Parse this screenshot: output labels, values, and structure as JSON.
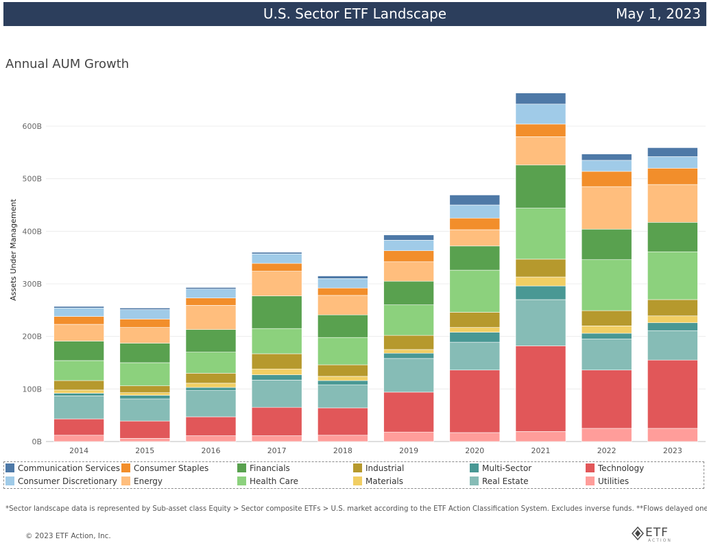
{
  "header": {
    "title": "U.S. Sector ETF Landscape",
    "date": "May 1, 2023"
  },
  "subtitle": "Annual AUM Growth",
  "footnote": "*Sector landscape data is represented by Sub-asset class Equity > Sector composite ETFs > U.S. market according to the ETF Action Classification System. Excludes inverse funds. **Flows delayed one day.",
  "copyright": "© 2023 ETF Action, Inc.",
  "logo": {
    "text": "ETF",
    "sub": "ACTION"
  },
  "chart_data": {
    "type": "bar",
    "stacked": true,
    "title": "Annual AUM Growth",
    "ylabel": "Assets Under Management",
    "xlabel": "",
    "ylim": [
      0,
      690
    ],
    "yticks": [
      0,
      100,
      200,
      300,
      400,
      500,
      600
    ],
    "ytick_labels": [
      "0B",
      "100B",
      "200B",
      "300B",
      "400B",
      "500B",
      "600B"
    ],
    "grid": true,
    "legend_position": "bottom",
    "categories": [
      "2014",
      "2015",
      "2016",
      "2017",
      "2018",
      "2019",
      "2020",
      "2021",
      "2022",
      "2023"
    ],
    "series": [
      {
        "name": "Utilities",
        "color": "#ff9d9a",
        "values": [
          12,
          6,
          11,
          11,
          12,
          18,
          17,
          19,
          25,
          25
        ]
      },
      {
        "name": "Technology",
        "color": "#e15759",
        "values": [
          31,
          33,
          36,
          54,
          52,
          76,
          119,
          163,
          111,
          130
        ]
      },
      {
        "name": "Real Estate",
        "color": "#86bcb6",
        "values": [
          44,
          42,
          50,
          52,
          44,
          64,
          53,
          88,
          59,
          56
        ]
      },
      {
        "name": "Multi-Sector",
        "color": "#499894",
        "values": [
          5,
          7,
          6,
          10,
          8,
          10,
          19,
          26,
          11,
          15
        ]
      },
      {
        "name": "Materials",
        "color": "#f1ce63",
        "values": [
          6,
          5,
          8,
          11,
          8,
          7,
          9,
          17,
          14,
          13
        ]
      },
      {
        "name": "Industrial",
        "color": "#b6992d",
        "values": [
          18,
          13,
          19,
          29,
          22,
          27,
          29,
          34,
          29,
          31
        ]
      },
      {
        "name": "Health Care",
        "color": "#8cd17d",
        "values": [
          38,
          44,
          40,
          48,
          52,
          58,
          80,
          97,
          97,
          91
        ]
      },
      {
        "name": "Financials",
        "color": "#59a14f",
        "values": [
          37,
          37,
          43,
          62,
          43,
          45,
          46,
          82,
          58,
          56
        ]
      },
      {
        "name": "Energy",
        "color": "#ffbe7d",
        "values": [
          32,
          30,
          46,
          47,
          37,
          37,
          31,
          54,
          81,
          72
        ]
      },
      {
        "name": "Consumer Staples",
        "color": "#f28e2b",
        "values": [
          15,
          16,
          14,
          15,
          14,
          21,
          22,
          24,
          29,
          31
        ]
      },
      {
        "name": "Consumer Discretionary",
        "color": "#a0cbe8",
        "values": [
          16,
          18,
          17,
          18,
          18,
          20,
          25,
          38,
          21,
          22
        ]
      },
      {
        "name": "Communication Services",
        "color": "#4e79a7",
        "values": [
          3,
          3,
          3,
          3,
          5,
          10,
          19,
          21,
          12,
          17
        ]
      }
    ],
    "legend_order": [
      "Communication Services",
      "Consumer Staples",
      "Financials",
      "Industrial",
      "Multi-Sector",
      "Technology",
      "Consumer Discretionary",
      "Energy",
      "Health Care",
      "Materials",
      "Real Estate",
      "Utilities"
    ]
  }
}
